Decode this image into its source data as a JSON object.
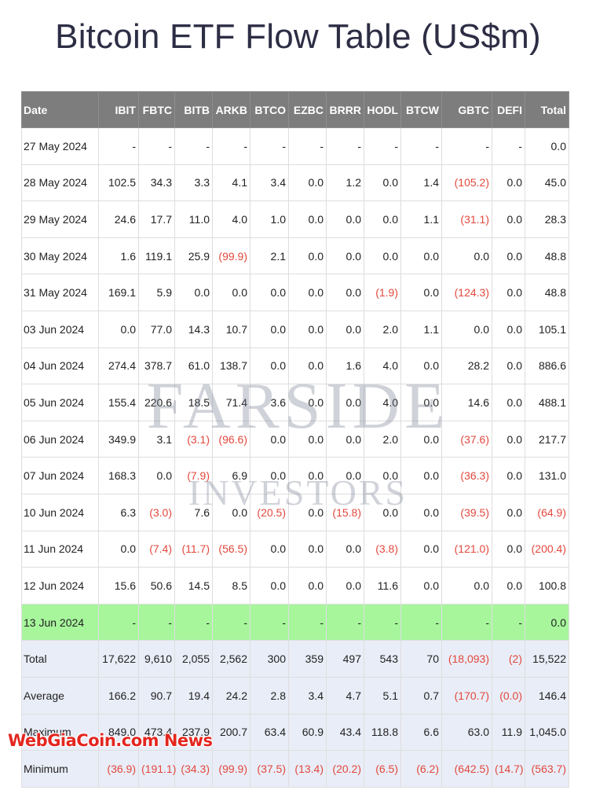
{
  "header": {
    "title": "Bitcoin ETF Flow Table (US$m)"
  },
  "table": {
    "columns": [
      "Date",
      "IBIT",
      "FBTC",
      "BITB",
      "ARKB",
      "BTCO",
      "EZBC",
      "BRRR",
      "HODL",
      "BTCW",
      "GBTC",
      "DEFI",
      "Total"
    ],
    "rows": [
      [
        "27 May 2024",
        "-",
        "-",
        "-",
        "-",
        "-",
        "-",
        "-",
        "-",
        "-",
        "-",
        "-",
        "0.0"
      ],
      [
        "28 May 2024",
        "102.5",
        "34.3",
        "3.3",
        "4.1",
        "3.4",
        "0.0",
        "1.2",
        "0.0",
        "1.4",
        "(105.2)",
        "0.0",
        "45.0"
      ],
      [
        "29 May 2024",
        "24.6",
        "17.7",
        "11.0",
        "4.0",
        "1.0",
        "0.0",
        "0.0",
        "0.0",
        "1.1",
        "(31.1)",
        "0.0",
        "28.3"
      ],
      [
        "30 May 2024",
        "1.6",
        "119.1",
        "25.9",
        "(99.9)",
        "2.1",
        "0.0",
        "0.0",
        "0.0",
        "0.0",
        "0.0",
        "0.0",
        "48.8"
      ],
      [
        "31 May 2024",
        "169.1",
        "5.9",
        "0.0",
        "0.0",
        "0.0",
        "0.0",
        "0.0",
        "(1.9)",
        "0.0",
        "(124.3)",
        "0.0",
        "48.8"
      ],
      [
        "03 Jun 2024",
        "0.0",
        "77.0",
        "14.3",
        "10.7",
        "0.0",
        "0.0",
        "0.0",
        "2.0",
        "1.1",
        "0.0",
        "0.0",
        "105.1"
      ],
      [
        "04 Jun 2024",
        "274.4",
        "378.7",
        "61.0",
        "138.7",
        "0.0",
        "0.0",
        "1.6",
        "4.0",
        "0.0",
        "28.2",
        "0.0",
        "886.6"
      ],
      [
        "05 Jun 2024",
        "155.4",
        "220.6",
        "18.5",
        "71.4",
        "3.6",
        "0.0",
        "0.0",
        "4.0",
        "0.0",
        "14.6",
        "0.0",
        "488.1"
      ],
      [
        "06 Jun 2024",
        "349.9",
        "3.1",
        "(3.1)",
        "(96.6)",
        "0.0",
        "0.0",
        "0.0",
        "2.0",
        "0.0",
        "(37.6)",
        "0.0",
        "217.7"
      ],
      [
        "07 Jun 2024",
        "168.3",
        "0.0",
        "(7.9)",
        "6.9",
        "0.0",
        "0.0",
        "0.0",
        "0.0",
        "0.0",
        "(36.3)",
        "0.0",
        "131.0"
      ],
      [
        "10 Jun 2024",
        "6.3",
        "(3.0)",
        "7.6",
        "0.0",
        "(20.5)",
        "0.0",
        "(15.8)",
        "0.0",
        "0.0",
        "(39.5)",
        "0.0",
        "(64.9)"
      ],
      [
        "11 Jun 2024",
        "0.0",
        "(7.4)",
        "(11.7)",
        "(56.5)",
        "0.0",
        "0.0",
        "0.0",
        "(3.8)",
        "0.0",
        "(121.0)",
        "0.0",
        "(200.4)"
      ],
      [
        "12 Jun 2024",
        "15.6",
        "50.6",
        "14.5",
        "8.5",
        "0.0",
        "0.0",
        "0.0",
        "11.6",
        "0.0",
        "0.0",
        "0.0",
        "100.8"
      ],
      [
        "13 Jun 2024",
        "-",
        "-",
        "-",
        "-",
        "-",
        "-",
        "-",
        "-",
        "-",
        "-",
        "-",
        "0.0"
      ]
    ],
    "highlight_row": 13,
    "summary_rows": [
      [
        "Total",
        "17,622",
        "9,610",
        "2,055",
        "2,562",
        "300",
        "359",
        "497",
        "543",
        "70",
        "(18,093)",
        "(2)",
        "15,522"
      ],
      [
        "Average",
        "166.2",
        "90.7",
        "19.4",
        "24.2",
        "2.8",
        "3.4",
        "4.7",
        "5.1",
        "0.7",
        "(170.7)",
        "(0.0)",
        "146.4"
      ],
      [
        "Maximum",
        "849.0",
        "473.4",
        "237.9",
        "200.7",
        "63.4",
        "60.9",
        "43.4",
        "118.8",
        "6.6",
        "63.0",
        "11.9",
        "1,045.0"
      ],
      [
        "Minimum",
        "(36.9)",
        "(191.1)",
        "(34.3)",
        "(99.9)",
        "(37.5)",
        "(13.4)",
        "(20.2)",
        "(6.5)",
        "(6.2)",
        "(642.5)",
        "(14.7)",
        "(563.7)"
      ]
    ]
  },
  "watermark": {
    "line1": "FARSIDE",
    "line2": "INVESTORS"
  },
  "overlay": {
    "text": "WebGiaCoin.com News"
  }
}
